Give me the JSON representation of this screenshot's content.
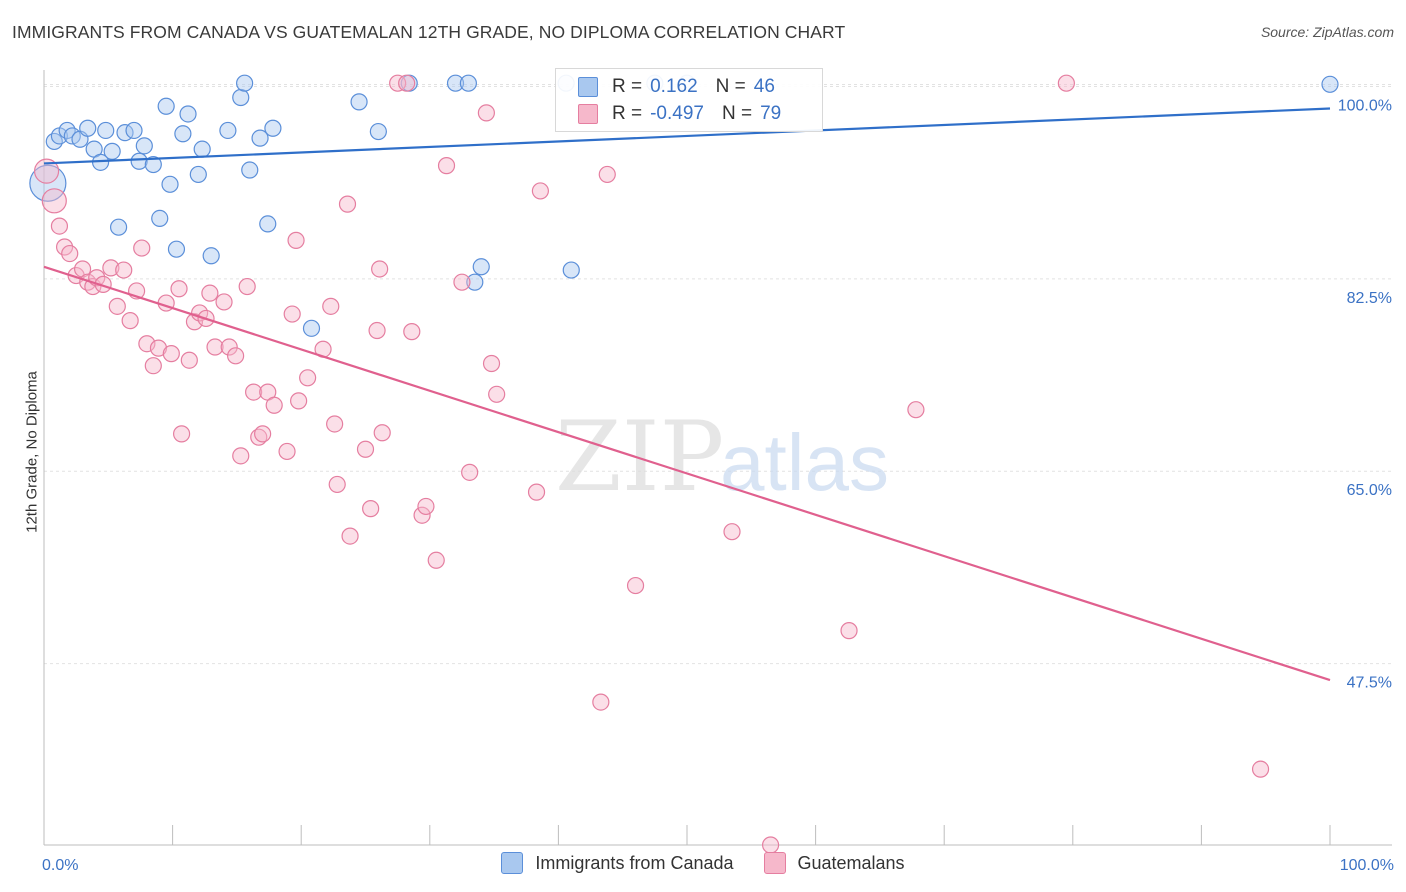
{
  "header": {
    "title": "IMMIGRANTS FROM CANADA VS GUATEMALAN 12TH GRADE, NO DIPLOMA CORRELATION CHART",
    "source": "Source: ZipAtlas.com"
  },
  "watermark": {
    "part1": "ZIP",
    "part2": "atlas"
  },
  "legend_top": {
    "rows": [
      {
        "r_label": "R =",
        "r_value": "0.162",
        "n_label": "N =",
        "n_value": "46",
        "color": "#a9c8ef"
      },
      {
        "r_label": "R =",
        "r_value": "-0.497",
        "n_label": "N =",
        "n_value": "79",
        "color": "#f6b8cb"
      }
    ]
  },
  "legend_bottom": {
    "items": [
      {
        "label": "Immigrants from Canada",
        "color": "#a9c8ef"
      },
      {
        "label": "Guatemalans",
        "color": "#f6b8cb"
      }
    ]
  },
  "chart_data": {
    "type": "scatter",
    "title": "IMMIGRANTS FROM CANADA VS GUATEMALAN 12TH GRADE, NO DIPLOMA CORRELATION CHART",
    "xlabel": "",
    "ylabel": "12th Grade, No Diploma",
    "xlim": [
      0,
      100
    ],
    "ylim": [
      31,
      101.5
    ],
    "x_tick_labels": [
      "0.0%",
      "100.0%"
    ],
    "y_ticks": [
      47.5,
      65.0,
      82.5,
      100.0
    ],
    "y_tick_labels": [
      "47.5%",
      "65.0%",
      "82.5%",
      "100.0%"
    ],
    "grid": true,
    "legend_position": "top-center",
    "series": [
      {
        "name": "Immigrants from Canada",
        "color": "#5b8fd9",
        "fill": "#a9c8ef",
        "trend": {
          "x": [
            0,
            100
          ],
          "y": [
            93.0,
            98.0
          ],
          "color": "#2f6fc9"
        },
        "points": [
          [
            0.3,
            91.2
          ],
          [
            0.8,
            95.0
          ],
          [
            1.2,
            95.5
          ],
          [
            1.8,
            96.0
          ],
          [
            2.2,
            95.5
          ],
          [
            2.8,
            95.2
          ],
          [
            3.4,
            96.2
          ],
          [
            3.9,
            94.3
          ],
          [
            4.4,
            93.1
          ],
          [
            4.8,
            96.0
          ],
          [
            5.3,
            94.1
          ],
          [
            5.8,
            87.2
          ],
          [
            6.3,
            95.8
          ],
          [
            7.0,
            96.0
          ],
          [
            7.4,
            93.2
          ],
          [
            7.8,
            94.6
          ],
          [
            8.5,
            92.9
          ],
          [
            9.0,
            88.0
          ],
          [
            9.5,
            98.2
          ],
          [
            9.8,
            91.1
          ],
          [
            10.3,
            85.2
          ],
          [
            10.8,
            95.7
          ],
          [
            11.2,
            97.5
          ],
          [
            12.0,
            92.0
          ],
          [
            12.3,
            94.3
          ],
          [
            13.0,
            84.6
          ],
          [
            14.3,
            96.0
          ],
          [
            15.3,
            99.0
          ],
          [
            15.6,
            100.3
          ],
          [
            16.0,
            92.4
          ],
          [
            16.8,
            95.3
          ],
          [
            17.4,
            87.5
          ],
          [
            17.8,
            96.2
          ],
          [
            20.8,
            78.0
          ],
          [
            24.5,
            98.6
          ],
          [
            26.0,
            95.9
          ],
          [
            28.4,
            100.3
          ],
          [
            32.0,
            100.3
          ],
          [
            33.0,
            100.3
          ],
          [
            33.5,
            82.2
          ],
          [
            34.0,
            83.6
          ],
          [
            40.6,
            100.3
          ],
          [
            41.0,
            83.3
          ],
          [
            47.5,
            100.3
          ],
          [
            50.0,
            100.3
          ],
          [
            100.0,
            100.2
          ]
        ]
      },
      {
        "name": "Guatemalans",
        "color": "#e57ea0",
        "fill": "#f6b8cb",
        "trend": {
          "x": [
            0,
            100
          ],
          "y": [
            83.6,
            46.0
          ],
          "color": "#e0608e"
        },
        "points": [
          [
            0.2,
            92.3
          ],
          [
            0.8,
            89.6
          ],
          [
            1.2,
            87.3
          ],
          [
            1.6,
            85.4
          ],
          [
            2.0,
            84.8
          ],
          [
            2.5,
            82.8
          ],
          [
            3.0,
            83.4
          ],
          [
            3.4,
            82.2
          ],
          [
            3.8,
            81.8
          ],
          [
            4.1,
            82.6
          ],
          [
            4.6,
            82.0
          ],
          [
            5.2,
            83.5
          ],
          [
            5.7,
            80.0
          ],
          [
            6.2,
            83.3
          ],
          [
            6.7,
            78.7
          ],
          [
            7.2,
            81.4
          ],
          [
            7.6,
            85.3
          ],
          [
            8.0,
            76.6
          ],
          [
            8.5,
            74.6
          ],
          [
            8.9,
            76.2
          ],
          [
            9.5,
            80.3
          ],
          [
            9.9,
            75.7
          ],
          [
            10.5,
            81.6
          ],
          [
            10.7,
            68.4
          ],
          [
            11.3,
            75.1
          ],
          [
            11.7,
            78.6
          ],
          [
            12.1,
            79.4
          ],
          [
            12.6,
            78.9
          ],
          [
            12.9,
            81.2
          ],
          [
            13.3,
            76.3
          ],
          [
            14.0,
            80.4
          ],
          [
            14.4,
            76.3
          ],
          [
            14.9,
            75.5
          ],
          [
            15.3,
            66.4
          ],
          [
            15.8,
            81.8
          ],
          [
            16.3,
            72.2
          ],
          [
            16.7,
            68.1
          ],
          [
            17.0,
            68.4
          ],
          [
            17.4,
            72.2
          ],
          [
            17.9,
            71.0
          ],
          [
            18.9,
            66.8
          ],
          [
            19.3,
            79.3
          ],
          [
            19.6,
            86.0
          ],
          [
            19.8,
            71.4
          ],
          [
            20.5,
            73.5
          ],
          [
            21.7,
            76.1
          ],
          [
            22.3,
            80.0
          ],
          [
            22.6,
            69.3
          ],
          [
            22.8,
            63.8
          ],
          [
            23.6,
            89.3
          ],
          [
            23.8,
            59.1
          ],
          [
            25.0,
            67.0
          ],
          [
            25.4,
            61.6
          ],
          [
            25.9,
            77.8
          ],
          [
            26.1,
            83.4
          ],
          [
            26.3,
            68.5
          ],
          [
            27.5,
            100.3
          ],
          [
            28.2,
            100.3
          ],
          [
            28.6,
            77.7
          ],
          [
            29.4,
            61.0
          ],
          [
            29.7,
            61.8
          ],
          [
            30.5,
            56.9
          ],
          [
            31.3,
            92.8
          ],
          [
            32.5,
            82.2
          ],
          [
            33.1,
            64.9
          ],
          [
            34.4,
            97.6
          ],
          [
            34.8,
            74.8
          ],
          [
            35.2,
            72.0
          ],
          [
            38.3,
            63.1
          ],
          [
            38.6,
            90.5
          ],
          [
            43.3,
            44.0
          ],
          [
            43.8,
            92.0
          ],
          [
            46.0,
            54.6
          ],
          [
            53.5,
            59.5
          ],
          [
            56.5,
            31.0
          ],
          [
            62.6,
            50.5
          ],
          [
            67.8,
            70.6
          ],
          [
            79.5,
            100.3
          ],
          [
            94.6,
            37.9
          ]
        ]
      }
    ]
  }
}
